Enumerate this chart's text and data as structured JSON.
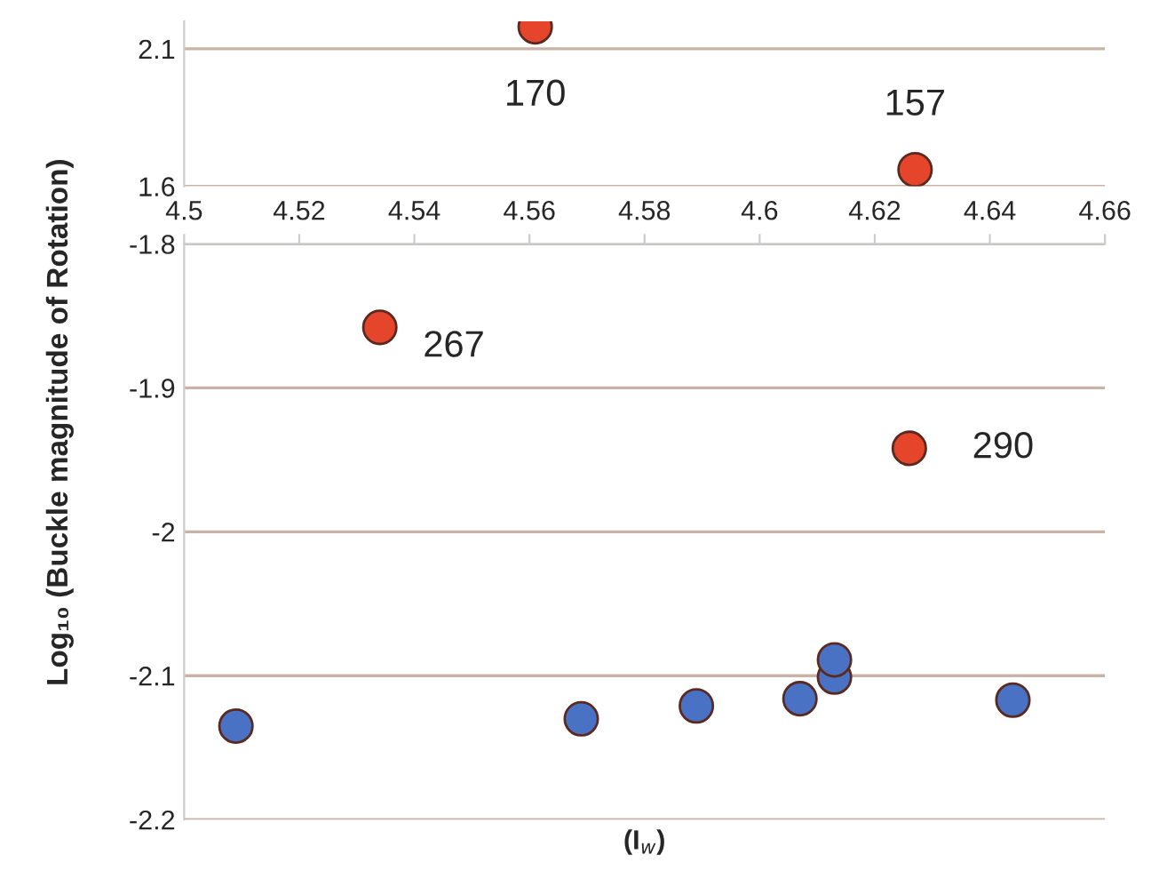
{
  "chart_data": [
    {
      "type": "scatter",
      "xlim": [
        4.5,
        4.66
      ],
      "ylim": [
        1.6,
        2.2
      ],
      "yticks": [
        1.6,
        2.1
      ],
      "tick_labels": "y",
      "grid": "y",
      "marker": "circle",
      "series": [
        {
          "color": "#e5452b",
          "x": [
            4.561,
            4.627
          ],
          "values": [
            2.18,
            1.66
          ]
        }
      ],
      "annotations": [
        {
          "text": "170",
          "x": 4.561,
          "y": 2.18
        },
        {
          "text": "157",
          "x": 4.627,
          "y": 1.66
        }
      ]
    },
    {
      "type": "scatter",
      "xlim": [
        4.5,
        4.66
      ],
      "xticks": [
        4.5,
        4.52,
        4.54,
        4.56,
        4.58,
        4.6,
        4.62,
        4.64,
        4.66
      ],
      "ylim": [
        -2.2,
        -1.8
      ],
      "yticks": [
        -2.2,
        -2.1,
        -2,
        -1.9,
        -1.8
      ],
      "grid": "y",
      "marker": "circle",
      "xlabel": "(I$_{w}$)",
      "ylabel": "Log₁₀ (Buckle magnitude of Rotation)",
      "series": [
        {
          "color": "#e5452b",
          "x": [
            4.534,
            4.626
          ],
          "values": [
            -1.858,
            -1.942
          ]
        },
        {
          "color": "#4a72c4",
          "x": [
            4.509,
            4.569,
            4.589,
            4.607,
            4.613,
            4.613,
            4.644
          ],
          "values": [
            -2.135,
            -2.13,
            -2.121,
            -2.116,
            -2.101,
            -2.089,
            -2.117
          ]
        }
      ],
      "annotations": [
        {
          "text": "267",
          "x": 4.534,
          "y": -1.858
        },
        {
          "text": "290",
          "x": 4.626,
          "y": -1.942
        }
      ]
    }
  ]
}
